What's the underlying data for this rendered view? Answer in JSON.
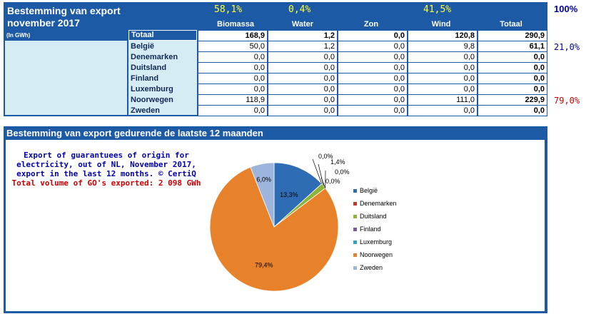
{
  "top": {
    "title_line1": "Bestemming van export",
    "title_line2": "november 2017",
    "unit_label": "(In GWh)",
    "headers": [
      "Biomassa",
      "Water",
      "Zon",
      "Wind",
      "Totaal"
    ],
    "percents": [
      "58,1%",
      "0,4%",
      "41,5%"
    ],
    "right_100": "100%",
    "right_21": "21,0%",
    "right_79": "79,0%",
    "totaal_row": {
      "label": "Totaal",
      "values": [
        "168,9",
        "1,2",
        "0,0",
        "120,8",
        "290,9"
      ]
    },
    "rows": [
      {
        "label": "België",
        "values": [
          "50,0",
          "1,2",
          "0,0",
          "9,8",
          "61,1"
        ]
      },
      {
        "label": "Denemarken",
        "values": [
          "0,0",
          "0,0",
          "0,0",
          "0,0",
          "0,0"
        ]
      },
      {
        "label": "Duitsland",
        "values": [
          "0,0",
          "0,0",
          "0,0",
          "0,0",
          "0,0"
        ]
      },
      {
        "label": "Finland",
        "values": [
          "0,0",
          "0,0",
          "0,0",
          "0,0",
          "0,0"
        ]
      },
      {
        "label": "Luxemburg",
        "values": [
          "0,0",
          "0,0",
          "0,0",
          "0,0",
          "0,0"
        ]
      },
      {
        "label": "Noorwegen",
        "values": [
          "118,9",
          "0,0",
          "0,0",
          "111,0",
          "229,9"
        ]
      },
      {
        "label": "Zweden",
        "values": [
          "0,0",
          "0,0",
          "0,0",
          "0,0",
          "0,0"
        ]
      }
    ]
  },
  "bottom": {
    "title": "Bestemming van export gedurende de laatste 12 maanden",
    "note_lines": [
      "Export of guarantuees of origin for",
      "electricity, out of NL, November 2017,",
      "export in the last 12 months. © CertiQ"
    ],
    "note_total": "Total volume of GO's exported: 2 098 GWh"
  },
  "colors": {
    "panel_blue": "#1d5aa6",
    "yellow": "#ffff33",
    "navy_text": "#0000aa",
    "red_text": "#cc0000"
  },
  "chart_data": {
    "type": "pie",
    "slices": [
      {
        "name": "België",
        "value": 13.3,
        "label": "13,3%",
        "color": "#2e6db4"
      },
      {
        "name": "Denemarken",
        "value": 0.0,
        "label": "0,0%",
        "color": "#c0392b"
      },
      {
        "name": "Duitsland",
        "value": 1.4,
        "label": "1,4%",
        "color": "#8db33a"
      },
      {
        "name": "Finland",
        "value": 0.0,
        "label": "0,0%",
        "color": "#7a5a9c"
      },
      {
        "name": "Luxemburg",
        "value": 0.0,
        "label": "0,0%",
        "color": "#2aa6c0"
      },
      {
        "name": "Noorwegen",
        "value": 79.4,
        "label": "79,4%",
        "color": "#e8822a"
      },
      {
        "name": "Zweden",
        "value": 6.0,
        "label": "6,0%",
        "color": "#9db4dc"
      }
    ],
    "legend_position": "right"
  }
}
